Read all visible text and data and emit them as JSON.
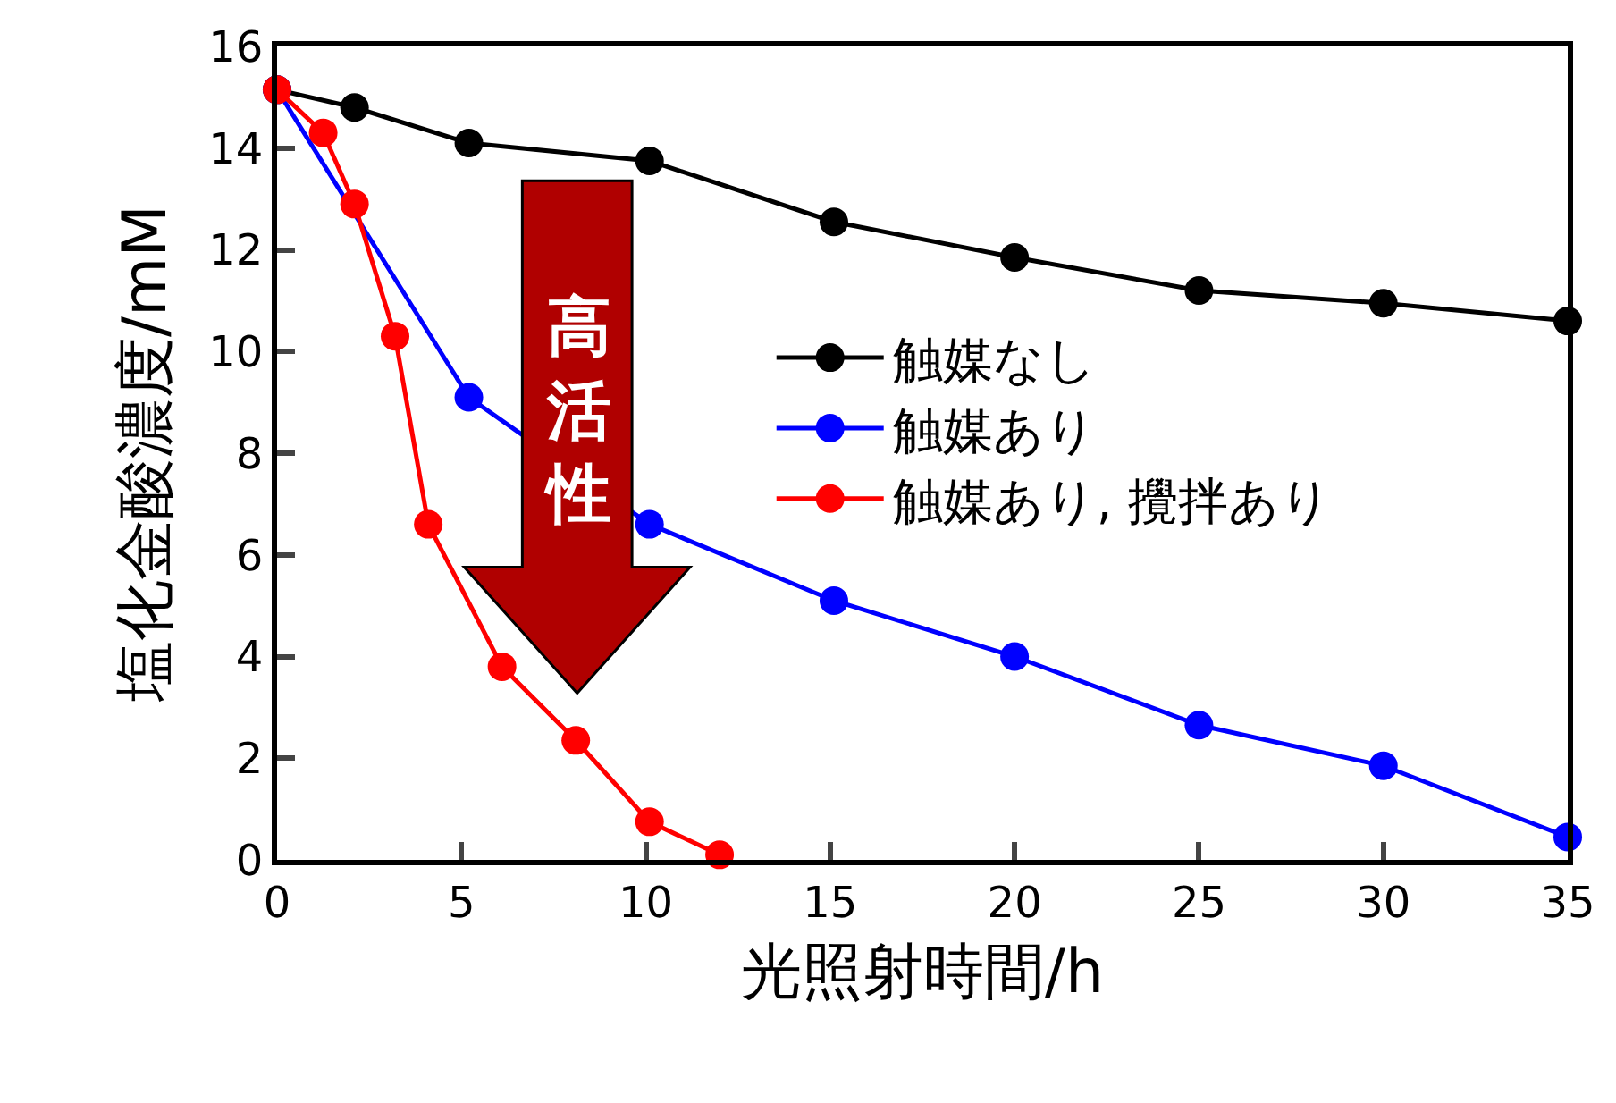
{
  "chart_data": {
    "type": "line",
    "xlabel": "光照射時間/h",
    "ylabel": "塩化金酸濃度/mM",
    "xlim": [
      0,
      35
    ],
    "xticks": [
      0,
      5,
      10,
      15,
      20,
      25,
      30,
      35
    ],
    "ylim": [
      0,
      16
    ],
    "yticks": [
      0,
      2,
      4,
      6,
      8,
      10,
      12,
      14,
      16
    ],
    "legend": "right",
    "marker": "circle",
    "line_style": "solid",
    "annotations": [
      "高活性"
    ],
    "series": [
      {
        "name": "触媒なし",
        "color": "#000000",
        "x": [
          0,
          2.1,
          5.2,
          10.1,
          15.1,
          20,
          25,
          30,
          35
        ],
        "values": [
          15.15,
          14.8,
          14.1,
          13.75,
          12.55,
          11.85,
          11.2,
          10.95,
          10.6
        ]
      },
      {
        "name": "触媒あり",
        "color": "#0000ff",
        "x": [
          0,
          5.2,
          10.1,
          15.1,
          20,
          25,
          30,
          35
        ],
        "values": [
          15.15,
          9.1,
          6.6,
          5.1,
          4.0,
          2.65,
          1.85,
          0.45
        ]
      },
      {
        "name": "触媒あり, 攪拌あり",
        "color": "#ff0000",
        "x": [
          0,
          1.25,
          2.1,
          3.2,
          4.1,
          6.1,
          8.1,
          10.1,
          12
        ],
        "values": [
          15.15,
          14.3,
          12.9,
          10.3,
          6.6,
          3.8,
          2.35,
          0.75,
          0.1
        ]
      }
    ]
  }
}
